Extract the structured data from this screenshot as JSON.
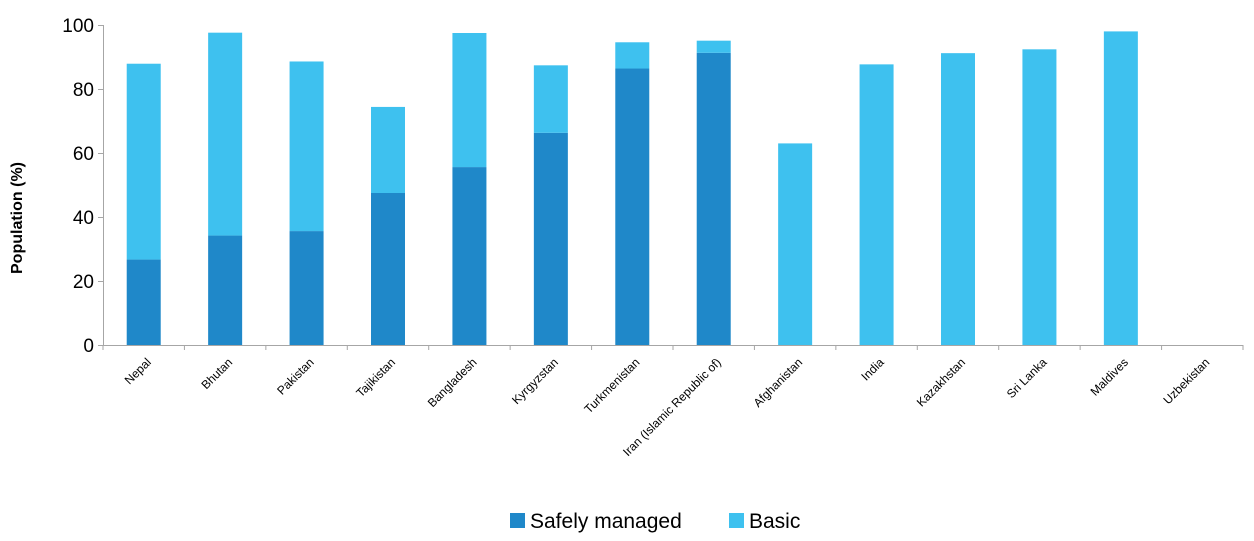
{
  "chart_data": {
    "type": "bar",
    "stacked": true,
    "title": "",
    "xlabel": "",
    "ylabel": "Population (%)",
    "ylim": [
      0,
      100
    ],
    "yticks": [
      0,
      20,
      40,
      60,
      80,
      100
    ],
    "grid": false,
    "legend_position": "bottom",
    "categories": [
      "Nepal",
      "Bhutan",
      "Pakistan",
      "Tajikistan",
      "Bangladesh",
      "Kyrgyzstan",
      "Turkmenistan",
      "Iran (Islamic Republic of)",
      "Afghanistan",
      "India",
      "Kazakhstan",
      "Sri Lanka",
      "Maldives",
      "Uzbekistan"
    ],
    "series": [
      {
        "name": "Safely managed",
        "color": "#1F88C9",
        "values": [
          26.7,
          34.2,
          35.6,
          47.5,
          55.6,
          66.3,
          86.4,
          91.3,
          null,
          null,
          null,
          null,
          null,
          null
        ]
      },
      {
        "name": "Basic",
        "color": "#3EC1EF",
        "values": [
          61.2,
          63.4,
          53.0,
          26.9,
          41.9,
          21.1,
          8.2,
          3.8,
          63.0,
          87.7,
          91.2,
          92.4,
          98.0,
          null
        ]
      }
    ]
  }
}
